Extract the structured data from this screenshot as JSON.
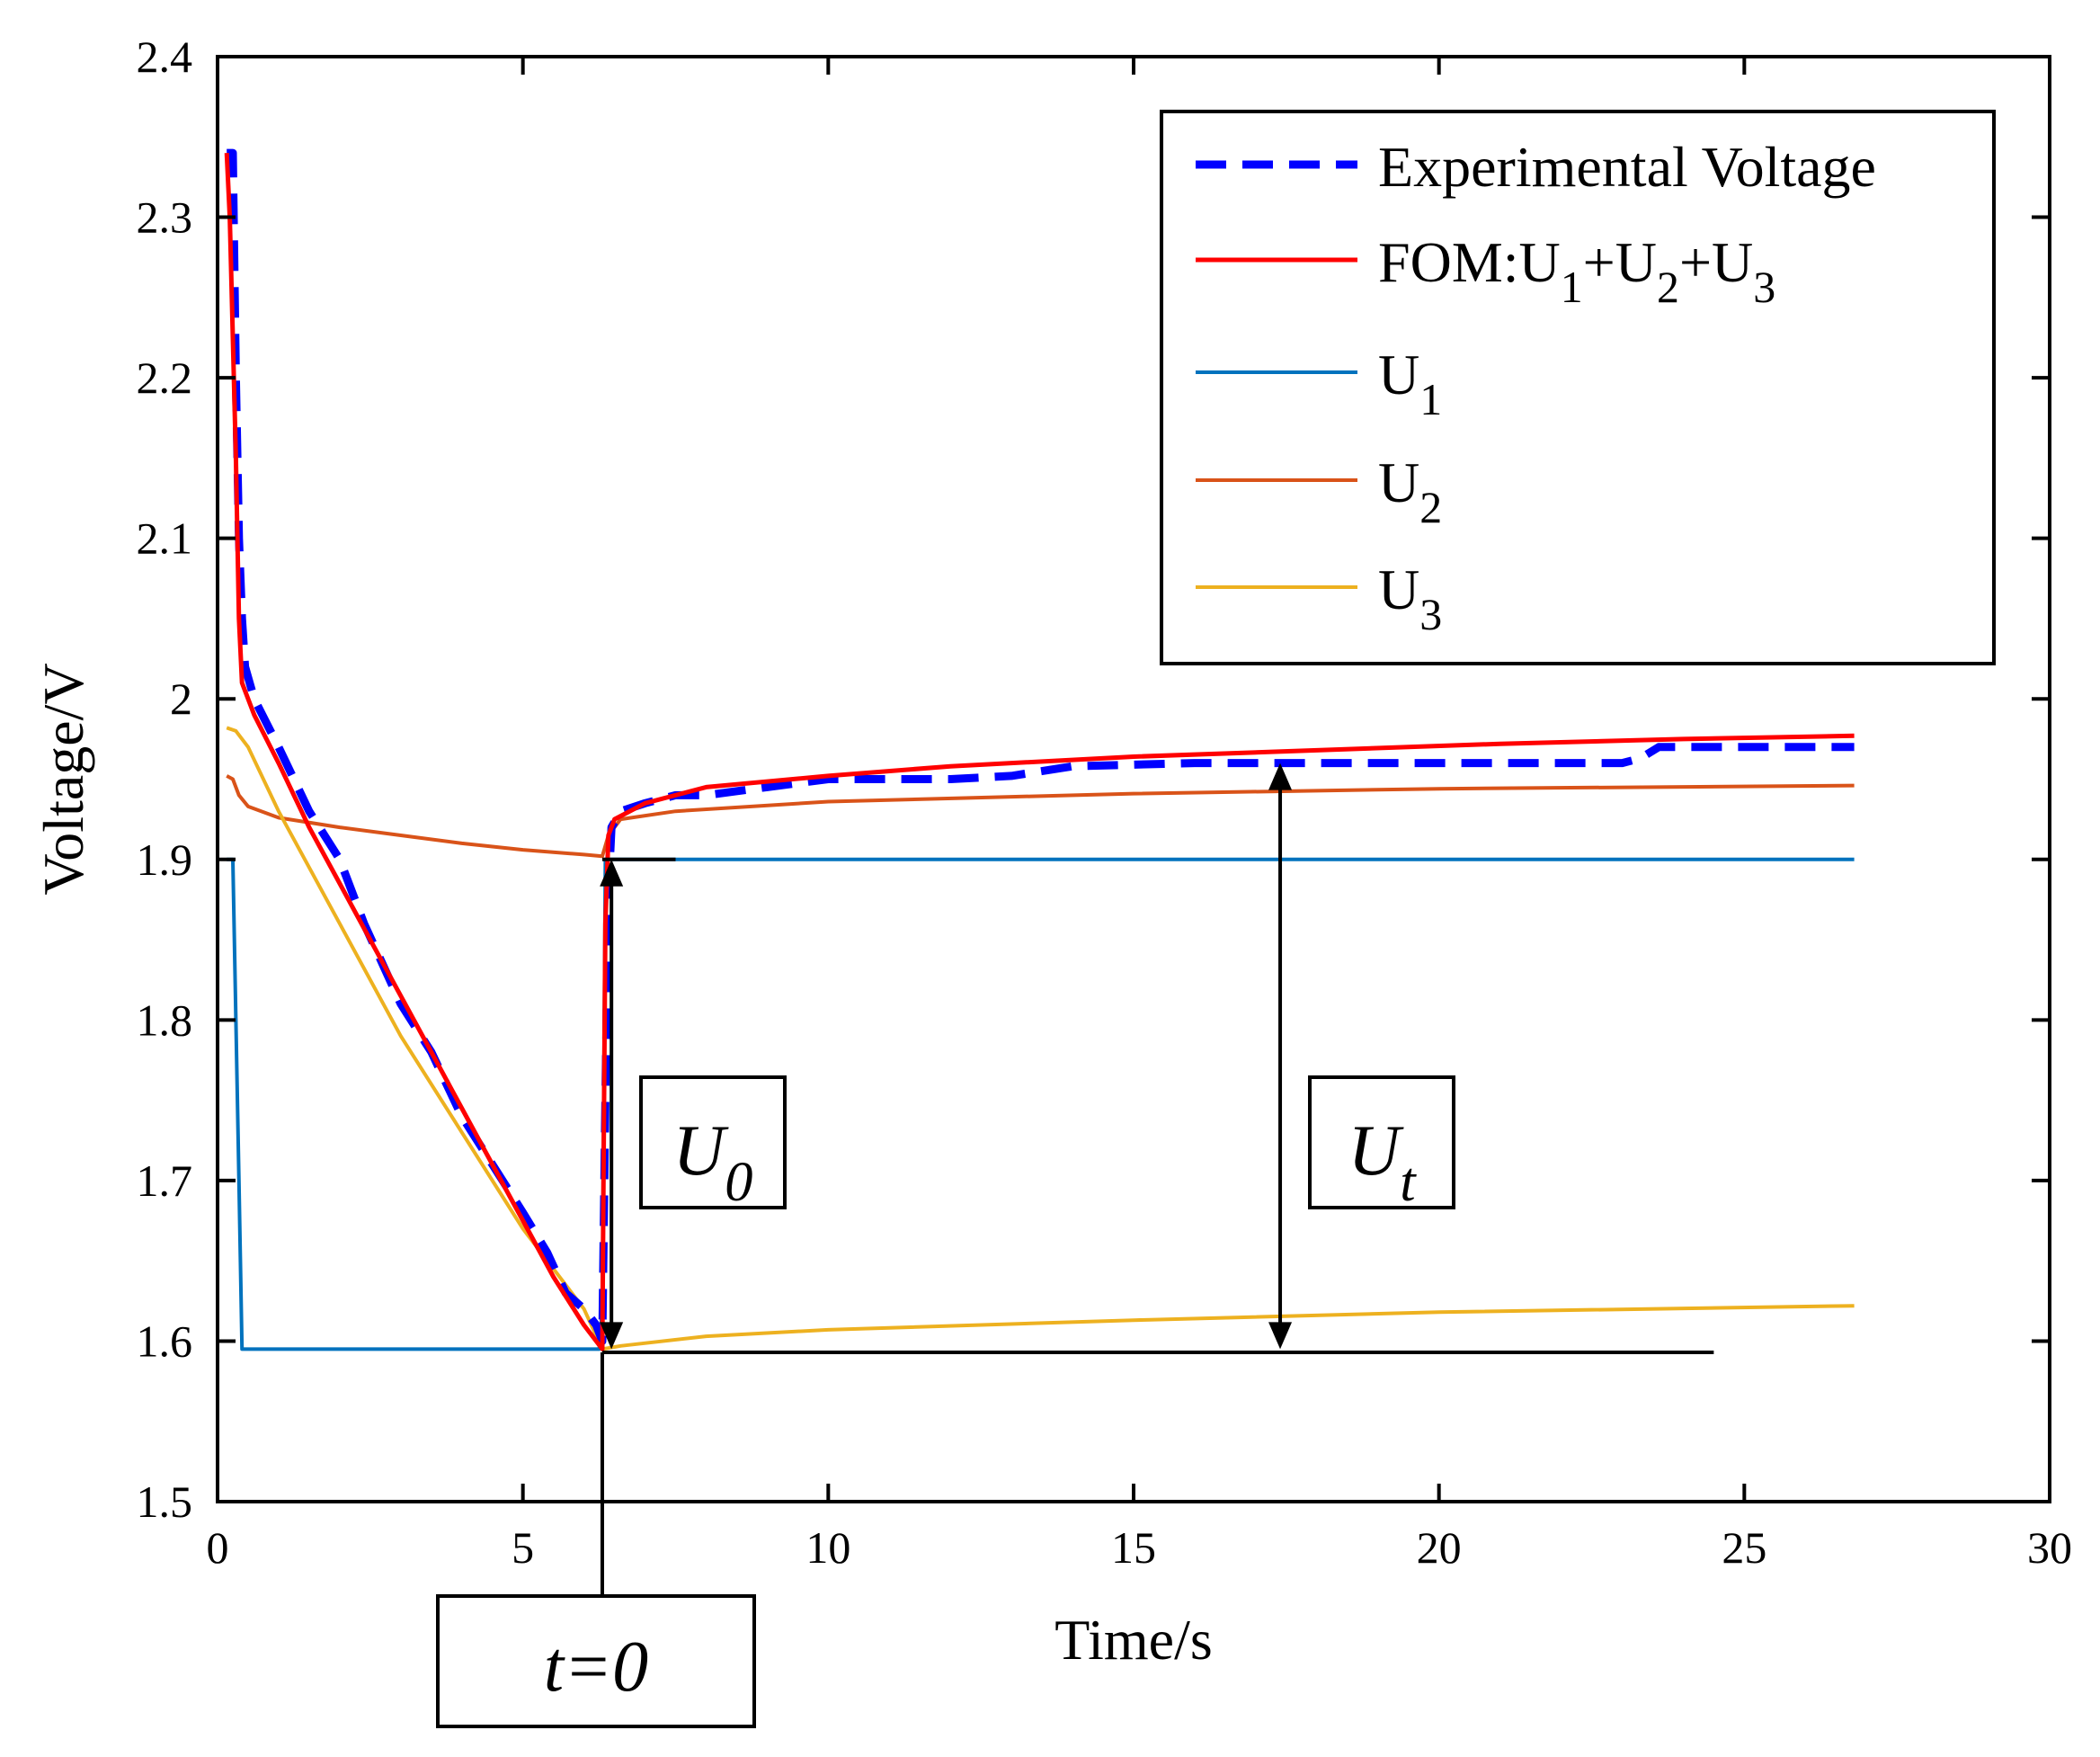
{
  "chart_data": {
    "type": "line",
    "title": "",
    "xlabel": "Time/s",
    "ylabel": "Voltage/V",
    "xlim": [
      0,
      30
    ],
    "ylim": [
      1.5,
      2.4
    ],
    "xticks": [
      0,
      5,
      10,
      15,
      20,
      25,
      30
    ],
    "yticks": [
      1.5,
      1.6,
      1.7,
      1.8,
      1.9,
      2.0,
      2.1,
      2.2,
      2.3,
      2.4
    ],
    "xtick_labels": [
      "0",
      "5",
      "10",
      "15",
      "20",
      "25",
      "30"
    ],
    "ytick_labels": [
      "1.5",
      "1.6",
      "1.7",
      "1.8",
      "1.9",
      "2",
      "2.1",
      "2.2",
      "2.3",
      "2.4"
    ],
    "grid": false,
    "legend_position": "top-right",
    "legend": [
      {
        "text": "Experimental Voltage",
        "parts": [
          [
            "Experimental Voltage",
            ""
          ]
        ]
      },
      {
        "text": "FOM:U1+U2+U3",
        "parts": [
          [
            "FOM:U",
            ""
          ],
          [
            "1",
            "sub"
          ],
          [
            "+U",
            ""
          ],
          [
            "2",
            "sub"
          ],
          [
            "+U",
            ""
          ],
          [
            "3",
            "sub"
          ]
        ]
      },
      {
        "text": "U1",
        "parts": [
          [
            "U",
            ""
          ],
          [
            "1",
            "sub"
          ]
        ]
      },
      {
        "text": "U2",
        "parts": [
          [
            "U",
            ""
          ],
          [
            "2",
            "sub"
          ]
        ]
      },
      {
        "text": "U3",
        "parts": [
          [
            "U",
            ""
          ],
          [
            "3",
            "sub"
          ]
        ]
      }
    ],
    "series": [
      {
        "name": "Experimental Voltage",
        "color": "#0000ff",
        "style": "dashed",
        "points": [
          [
            0.15,
            2.34
          ],
          [
            0.25,
            2.34
          ],
          [
            0.3,
            2.2
          ],
          [
            0.35,
            2.1
          ],
          [
            0.4,
            2.05
          ],
          [
            0.45,
            2.02
          ],
          [
            0.6,
            2.0
          ],
          [
            1.0,
            1.97
          ],
          [
            1.5,
            1.93
          ],
          [
            2.0,
            1.9
          ],
          [
            2.4,
            1.86
          ],
          [
            3.0,
            1.81
          ],
          [
            3.5,
            1.78
          ],
          [
            4.0,
            1.74
          ],
          [
            4.5,
            1.71
          ],
          [
            5.0,
            1.68
          ],
          [
            5.4,
            1.655
          ],
          [
            5.7,
            1.63
          ],
          [
            6.0,
            1.62
          ],
          [
            6.2,
            1.61
          ],
          [
            6.3,
            1.6
          ],
          [
            6.35,
            1.75
          ],
          [
            6.4,
            1.88
          ],
          [
            6.45,
            1.92
          ],
          [
            6.6,
            1.93
          ],
          [
            7.0,
            1.935
          ],
          [
            7.5,
            1.94
          ],
          [
            8.0,
            1.94
          ],
          [
            9.0,
            1.945
          ],
          [
            10.0,
            1.95
          ],
          [
            11.0,
            1.95
          ],
          [
            12.0,
            1.95
          ],
          [
            13.0,
            1.952
          ],
          [
            14.0,
            1.958
          ],
          [
            16.0,
            1.96
          ],
          [
            18.0,
            1.96
          ],
          [
            20.0,
            1.96
          ],
          [
            22.0,
            1.96
          ],
          [
            23.0,
            1.96
          ],
          [
            23.3,
            1.963
          ],
          [
            23.6,
            1.97
          ],
          [
            25.0,
            1.97
          ],
          [
            26.8,
            1.97
          ]
        ]
      },
      {
        "name": "FOM:U1+U2+U3",
        "color": "#ff0000",
        "style": "solid",
        "points": [
          [
            0.15,
            2.34
          ],
          [
            0.2,
            2.3
          ],
          [
            0.3,
            2.15
          ],
          [
            0.35,
            2.05
          ],
          [
            0.4,
            2.01
          ],
          [
            0.6,
            1.99
          ],
          [
            1.0,
            1.96
          ],
          [
            1.5,
            1.92
          ],
          [
            2.0,
            1.885
          ],
          [
            2.5,
            1.85
          ],
          [
            3.0,
            1.815
          ],
          [
            3.5,
            1.78
          ],
          [
            4.0,
            1.745
          ],
          [
            4.5,
            1.71
          ],
          [
            5.0,
            1.675
          ],
          [
            5.5,
            1.64
          ],
          [
            6.0,
            1.61
          ],
          [
            6.3,
            1.595
          ],
          [
            6.32,
            1.7
          ],
          [
            6.35,
            1.86
          ],
          [
            6.4,
            1.915
          ],
          [
            6.5,
            1.925
          ],
          [
            7.0,
            1.935
          ],
          [
            8.0,
            1.945
          ],
          [
            10.0,
            1.952
          ],
          [
            12.0,
            1.958
          ],
          [
            15.0,
            1.964
          ],
          [
            18.0,
            1.968
          ],
          [
            21.0,
            1.972
          ],
          [
            24.0,
            1.975
          ],
          [
            26.8,
            1.977
          ]
        ]
      },
      {
        "name": "U1",
        "color": "#0072bd",
        "style": "solid",
        "points": [
          [
            0.15,
            1.9
          ],
          [
            0.25,
            1.9
          ],
          [
            0.35,
            1.7
          ],
          [
            0.4,
            1.595
          ],
          [
            6.25,
            1.595
          ],
          [
            6.3,
            1.62
          ],
          [
            6.35,
            1.9
          ],
          [
            26.8,
            1.9
          ]
        ]
      },
      {
        "name": "U2",
        "color": "#d95319",
        "style": "solid",
        "points": [
          [
            0.15,
            1.952
          ],
          [
            0.25,
            1.95
          ],
          [
            0.35,
            1.94
          ],
          [
            0.5,
            1.933
          ],
          [
            1.0,
            1.926
          ],
          [
            2.0,
            1.92
          ],
          [
            3.0,
            1.915
          ],
          [
            4.0,
            1.91
          ],
          [
            5.0,
            1.906
          ],
          [
            6.0,
            1.903
          ],
          [
            6.3,
            1.902
          ],
          [
            6.4,
            1.915
          ],
          [
            6.6,
            1.925
          ],
          [
            7.5,
            1.93
          ],
          [
            10.0,
            1.936
          ],
          [
            15.0,
            1.941
          ],
          [
            20.0,
            1.944
          ],
          [
            26.8,
            1.946
          ]
        ]
      },
      {
        "name": "U3",
        "color": "#edb120",
        "style": "solid",
        "points": [
          [
            0.15,
            1.982
          ],
          [
            0.3,
            1.98
          ],
          [
            0.5,
            1.97
          ],
          [
            1.0,
            1.93
          ],
          [
            2.0,
            1.86
          ],
          [
            3.0,
            1.79
          ],
          [
            4.0,
            1.73
          ],
          [
            5.0,
            1.67
          ],
          [
            6.0,
            1.62
          ],
          [
            6.3,
            1.595
          ],
          [
            6.6,
            1.597
          ],
          [
            8.0,
            1.603
          ],
          [
            10.0,
            1.607
          ],
          [
            15.0,
            1.613
          ],
          [
            20.0,
            1.618
          ],
          [
            26.8,
            1.622
          ]
        ]
      }
    ],
    "annotations": [
      {
        "id": "U0",
        "parts": [
          [
            "U",
            ""
          ],
          [
            "0",
            "sub"
          ]
        ],
        "x": 6.45,
        "x_low": 1.595,
        "x_high": 1.9,
        "kind": "double-arrow"
      },
      {
        "id": "Ut",
        "parts": [
          [
            "U",
            ""
          ],
          [
            "t",
            "sub"
          ]
        ],
        "x": 17.4,
        "x_low": 1.595,
        "x_high": 1.96,
        "kind": "double-arrow"
      },
      {
        "id": "t0",
        "parts": [
          [
            "t=0",
            ""
          ]
        ],
        "x": 6.3,
        "kind": "marker"
      }
    ],
    "reference_lines": [
      {
        "x_from": 6.3,
        "x_to": 24.5,
        "y": 1.593
      },
      {
        "x_from": 6.3,
        "x_to": 7.5,
        "y": 1.9
      }
    ]
  }
}
